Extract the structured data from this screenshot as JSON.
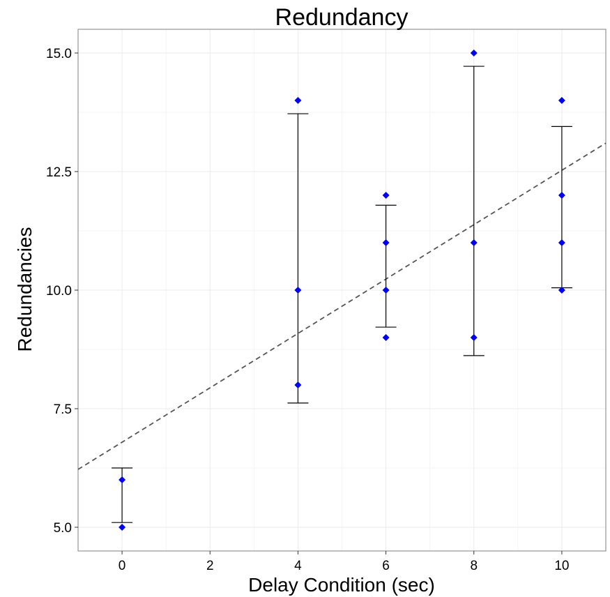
{
  "chart_data": {
    "type": "scatter",
    "title": "Redundancy",
    "xlabel": "Delay Condition (sec)",
    "ylabel": "Redundancies",
    "xlim": [
      -1,
      11
    ],
    "ylim": [
      4.5,
      15.5
    ],
    "x_ticks": [
      "0",
      "2",
      "4",
      "6",
      "8",
      "10"
    ],
    "y_ticks": [
      "5.0",
      "7.5",
      "10.0",
      "12.5",
      "15.0"
    ],
    "grid": true,
    "colors": {
      "points": "#0000ff",
      "errorbar": "#000000",
      "trend": "#555555",
      "grid": "#ebebeb",
      "border": "#7f7f7f"
    },
    "points": [
      {
        "x": 0,
        "y": 6
      },
      {
        "x": 0,
        "y": 5
      },
      {
        "x": 4,
        "y": 14
      },
      {
        "x": 4,
        "y": 10
      },
      {
        "x": 4,
        "y": 8
      },
      {
        "x": 6,
        "y": 12
      },
      {
        "x": 6,
        "y": 11
      },
      {
        "x": 6,
        "y": 10
      },
      {
        "x": 6,
        "y": 9
      },
      {
        "x": 8,
        "y": 15
      },
      {
        "x": 8,
        "y": 11
      },
      {
        "x": 8,
        "y": 9
      },
      {
        "x": 10,
        "y": 14
      },
      {
        "x": 10,
        "y": 12
      },
      {
        "x": 10,
        "y": 11
      },
      {
        "x": 10,
        "y": 10
      }
    ],
    "error_bars": [
      {
        "x": 0,
        "low": 5.1,
        "high": 6.25
      },
      {
        "x": 4,
        "low": 7.62,
        "high": 13.72
      },
      {
        "x": 6,
        "low": 9.22,
        "high": 11.79
      },
      {
        "x": 8,
        "low": 8.62,
        "high": 14.72
      },
      {
        "x": 10,
        "low": 10.05,
        "high": 13.45
      }
    ],
    "trend_line": {
      "style": "dashed",
      "x": [
        -1,
        11
      ],
      "y": [
        6.22,
        13.1
      ]
    }
  }
}
